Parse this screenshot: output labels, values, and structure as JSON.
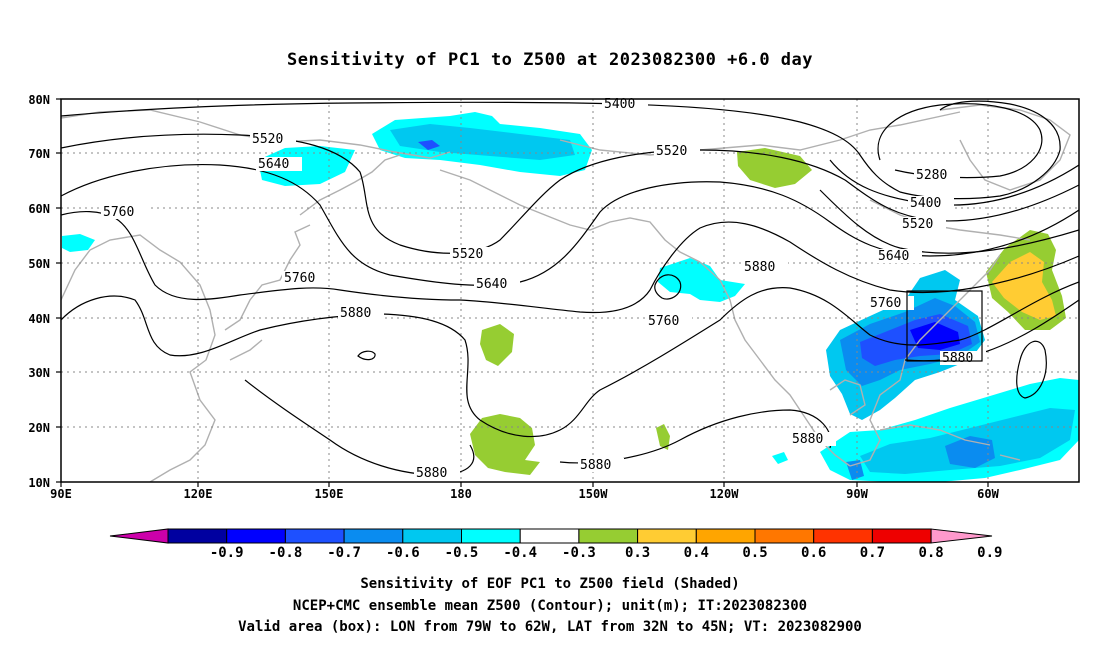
{
  "title": "Sensitivity of PC1 to Z500 at 2023082300 +6.0 day",
  "lat_labels": [
    "80N",
    "70N",
    "60N",
    "50N",
    "40N",
    "30N",
    "20N",
    "10N"
  ],
  "lon_labels": [
    "90E",
    "120E",
    "150E",
    "180",
    "150W",
    "120W",
    "90W",
    "60W"
  ],
  "contour_labels": [
    {
      "text": "5400"
    },
    {
      "text": "5520"
    },
    {
      "text": "5640"
    },
    {
      "text": "5760"
    },
    {
      "text": "5520"
    },
    {
      "text": "5520"
    },
    {
      "text": "5640"
    },
    {
      "text": "5760"
    },
    {
      "text": "5880"
    },
    {
      "text": "5760"
    },
    {
      "text": "5880"
    },
    {
      "text": "5280"
    },
    {
      "text": "5400"
    },
    {
      "text": "5520"
    },
    {
      "text": "5640"
    },
    {
      "text": "5760"
    },
    {
      "text": "5880"
    },
    {
      "text": "5880"
    },
    {
      "text": "5880"
    },
    {
      "text": "5880"
    }
  ],
  "colorbar": {
    "levels": [
      "-0.9",
      "-0.8",
      "-0.7",
      "-0.6",
      "-0.5",
      "-0.4",
      "-0.3",
      "0.3",
      "0.4",
      "0.5",
      "0.6",
      "0.7",
      "0.8",
      "0.9"
    ],
    "colors": [
      "#0000a0",
      "#0000ff",
      "#1e50ff",
      "#0a8cf0",
      "#00c8f0",
      "#00ffff",
      "#ffffff",
      "#96cd32",
      "#ffcc33",
      "#ffa500",
      "#ff7700",
      "#ff3300",
      "#ee0000"
    ],
    "low_end_color": "#cc00aa",
    "high_end_color": "#ff99cc"
  },
  "valid_box": {
    "lon": [
      "79W",
      "62W"
    ],
    "lat": [
      "32N",
      "45N"
    ]
  },
  "footer": {
    "line1": "Sensitivity of EOF PC1 to Z500 field (Shaded)",
    "line2": "NCEP+CMC ensemble mean Z500 (Contour); unit(m); IT:2023082300",
    "line3": "Valid area (box): LON from 79W to 62W, LAT from 32N to 45N; VT: 2023082900"
  }
}
